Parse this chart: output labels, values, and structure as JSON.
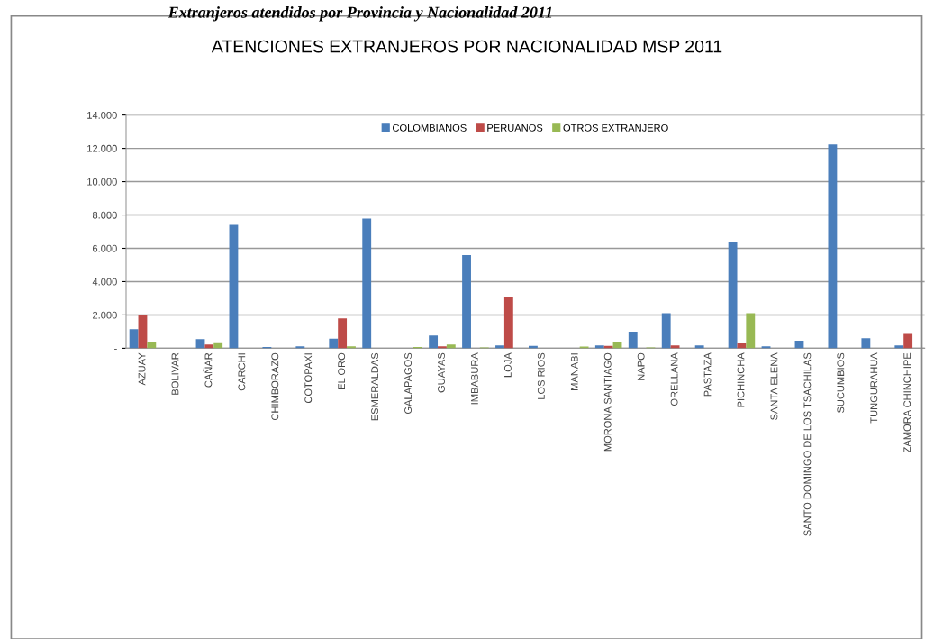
{
  "chart_data": {
    "type": "bar",
    "title": "ATENCIONES EXTRANJEROS POR NACIONALIDAD MSP 2011",
    "annotations": [
      "Extranjeros atendidos por Provincia y Nacionalidad 2011"
    ],
    "categories": [
      "AZUAY",
      "BOLIVAR",
      "CAÑAR",
      "CARCHI",
      "CHIMBORAZO",
      "COTOPAXI",
      "EL ORO",
      "ESMERALDAS",
      "GALAPAGOS",
      "GUAYAS",
      "IMBABURA",
      "LOJA",
      "LOS RIOS",
      "MANABI",
      "MORONA SANTIAGO",
      "NAPO",
      "ORELLANA",
      "PASTAZA",
      "PICHINCHA",
      "SANTA ELENA",
      "SANTO DOMINGO DE LOS TSACHILAS",
      "SUCUMBIOS",
      "TUNGURAHUA",
      "ZAMORA CHINCHIPE"
    ],
    "series": [
      {
        "name": "COLOMBIANOS",
        "color": "#4a7ebb",
        "values": [
          1150,
          0,
          550,
          7400,
          80,
          120,
          580,
          7780,
          0,
          770,
          5590,
          170,
          140,
          0,
          170,
          990,
          2100,
          170,
          6410,
          120,
          460,
          12230,
          600,
          170
        ]
      },
      {
        "name": "PERUANOS",
        "color": "#be4b48",
        "values": [
          1970,
          0,
          220,
          0,
          0,
          0,
          1800,
          0,
          0,
          120,
          0,
          3080,
          0,
          0,
          140,
          0,
          170,
          0,
          290,
          0,
          0,
          0,
          0,
          860
        ]
      },
      {
        "name": "OTROS EXTRANJERO",
        "color": "#98b954",
        "values": [
          340,
          0,
          310,
          0,
          0,
          0,
          120,
          0,
          70,
          220,
          50,
          0,
          0,
          100,
          380,
          50,
          0,
          0,
          2100,
          0,
          0,
          0,
          0,
          0
        ]
      }
    ],
    "ylim": [
      0,
      14000
    ],
    "yticks": [
      {
        "value": 0,
        "label": "-"
      },
      {
        "value": 2000,
        "label": "2.000"
      },
      {
        "value": 4000,
        "label": "4.000"
      },
      {
        "value": 6000,
        "label": "6.000"
      },
      {
        "value": 8000,
        "label": "8.000"
      },
      {
        "value": 10000,
        "label": "10.000"
      },
      {
        "value": 12000,
        "label": "12.000"
      },
      {
        "value": 14000,
        "label": "14.000"
      }
    ],
    "grid": "y",
    "legend": "top"
  }
}
